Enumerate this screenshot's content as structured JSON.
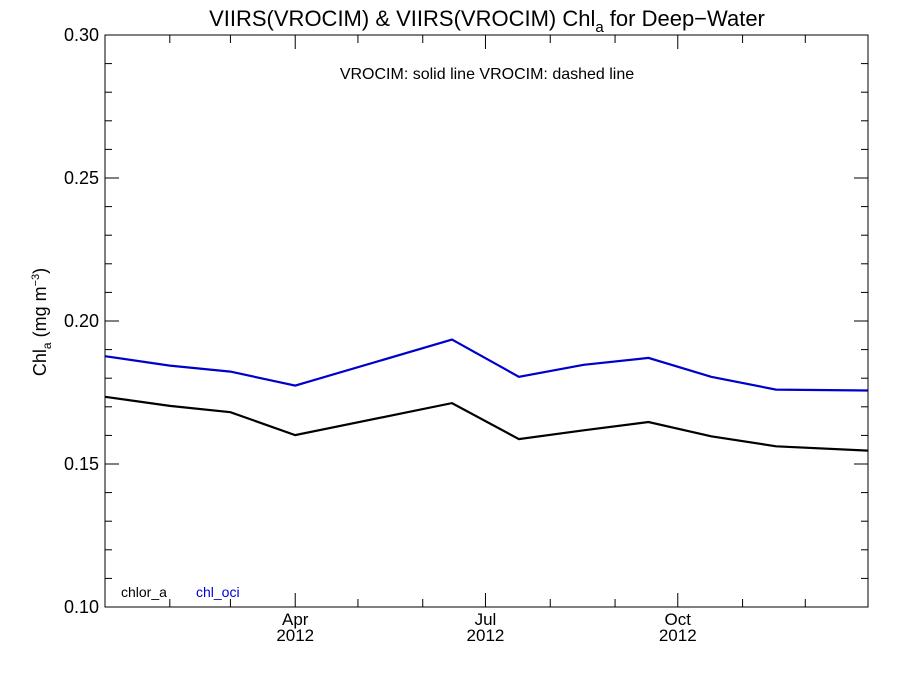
{
  "chart_data": {
    "type": "line",
    "title": {
      "prefix": "VIIRS(VROCIM) & VIIRS(VROCIM)  Chl",
      "subscript": "a",
      "suffix": " for Deep−Water"
    },
    "annotation": "VROCIM: solid line   VROCIM: dashed line",
    "ylabel": {
      "prefix": "Chl",
      "subscript": "a",
      "middle": " (mg m",
      "superscript": "−3",
      "suffix": ")"
    },
    "ylim": [
      0.1,
      0.3
    ],
    "yticks": [
      {
        "value": 0.1,
        "label": "0.10"
      },
      {
        "value": 0.15,
        "label": "0.15"
      },
      {
        "value": 0.2,
        "label": "0.20"
      },
      {
        "value": 0.25,
        "label": "0.25"
      },
      {
        "value": 0.3,
        "label": "0.30"
      }
    ],
    "y_minor_step": 0.01,
    "xlim": [
      "2012-01-01",
      "2012-12-31"
    ],
    "x_minor_ticks": [
      "2012-02-01",
      "2012-03-01",
      "2012-04-01",
      "2012-05-01",
      "2012-06-01",
      "2012-07-01",
      "2012-08-01",
      "2012-09-01",
      "2012-10-01",
      "2012-11-01",
      "2012-12-01"
    ],
    "xticks": [
      {
        "date": "2012-04-01",
        "label": "Apr",
        "year": "2012"
      },
      {
        "date": "2012-07-01",
        "label": "Jul",
        "year": "2012"
      },
      {
        "date": "2012-10-01",
        "label": "Oct",
        "year": "2012"
      }
    ],
    "x": [
      "2012-01-01",
      "2012-02-01",
      "2012-03-01",
      "2012-04-01",
      "2012-06-15",
      "2012-07-17",
      "2012-08-17",
      "2012-09-17",
      "2012-10-17",
      "2012-11-17",
      "2012-12-31"
    ],
    "series": [
      {
        "name": "chlor_a",
        "color": "#000000",
        "values": [
          0.1735,
          0.1703,
          0.1681,
          0.1601,
          0.1713,
          0.1587,
          0.1618,
          0.1647,
          0.1597,
          0.1562,
          0.1547
        ]
      },
      {
        "name": "chl_oci",
        "color": "#0000cc",
        "values": [
          0.1877,
          0.1844,
          0.1823,
          0.1774,
          0.1935,
          0.1805,
          0.1847,
          0.1871,
          0.1805,
          0.176,
          0.1757
        ]
      }
    ]
  }
}
